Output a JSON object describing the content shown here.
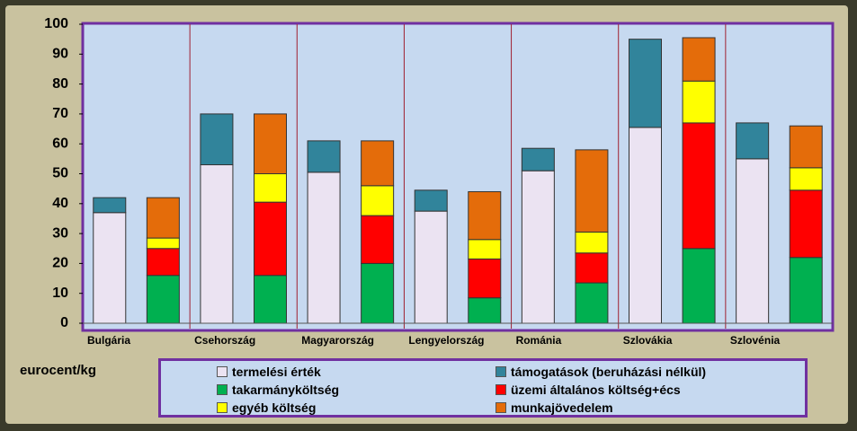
{
  "chart_data": {
    "type": "stacked_bar",
    "categories": [
      "Bulgária",
      null,
      "Csehország",
      null,
      "Magyarország",
      null,
      "Lengyelország",
      null,
      "Románia",
      null,
      "Szlovákia",
      null,
      "Szlovénia",
      null
    ],
    "series": [
      {
        "name": "termelési érték",
        "color": "#ebe3f2",
        "values": [
          37,
          null,
          53,
          null,
          50.5,
          null,
          37.5,
          null,
          51,
          null,
          65.5,
          null,
          55,
          null
        ]
      },
      {
        "name": "támogatások (beruházási nélkül)",
        "color": "#31849b",
        "values": [
          5,
          null,
          17,
          null,
          10.5,
          null,
          7,
          null,
          7.5,
          null,
          29.5,
          null,
          12,
          null
        ]
      },
      {
        "name": "takarmányköltség",
        "color": "#00b050",
        "values": [
          null,
          16,
          null,
          16,
          null,
          20,
          null,
          8.5,
          null,
          13.5,
          null,
          25,
          null,
          22
        ]
      },
      {
        "name": "üzemi általános költség+écs",
        "color": "#ff0000",
        "values": [
          null,
          9,
          null,
          24.5,
          null,
          16,
          null,
          13,
          null,
          10,
          null,
          42,
          null,
          22.5
        ]
      },
      {
        "name": "egyéb költség",
        "color": "#ffff00",
        "values": [
          null,
          3.5,
          null,
          9.5,
          null,
          10,
          null,
          6.5,
          null,
          7,
          null,
          14,
          null,
          7.5
        ]
      },
      {
        "name": "munkajövedelem",
        "color": "#e46c0a",
        "values": [
          null,
          13.5,
          null,
          20,
          null,
          15,
          null,
          16,
          null,
          27.5,
          null,
          14.5,
          null,
          14
        ]
      }
    ],
    "y_label": "eurocent/kg",
    "ylim": [
      0,
      100
    ],
    "yticks": [
      0,
      10,
      20,
      30,
      40,
      50,
      60,
      70,
      80,
      90,
      100
    ],
    "legend": "bottom"
  }
}
